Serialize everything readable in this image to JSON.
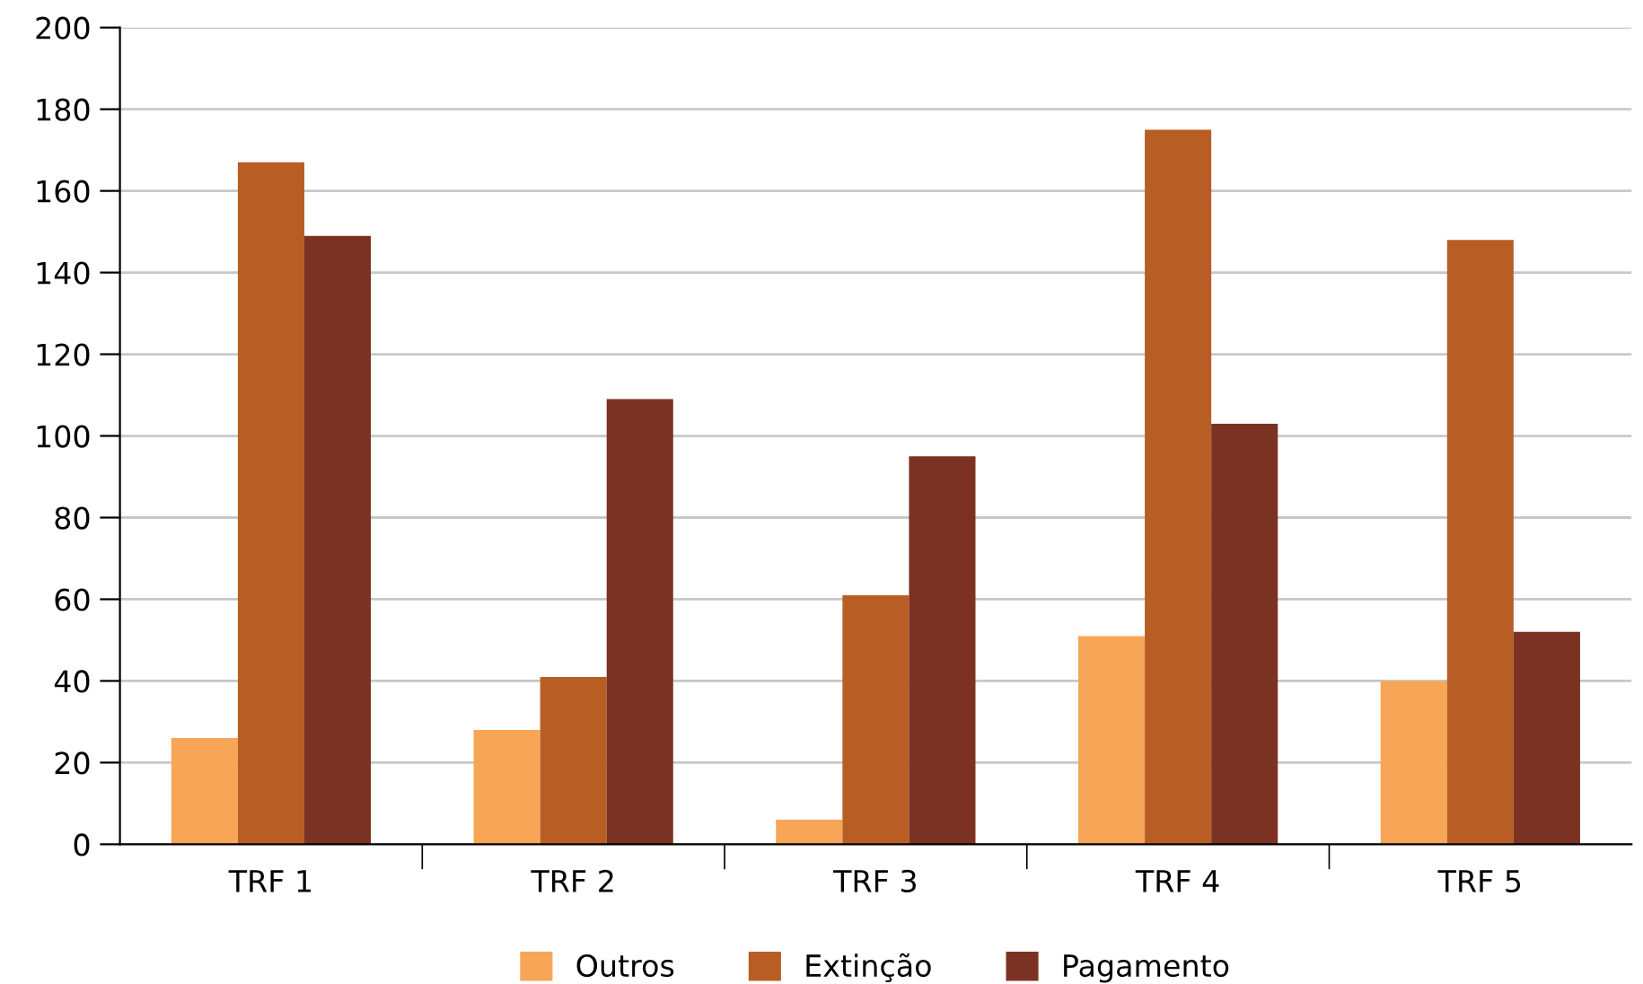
{
  "chart_data": {
    "type": "bar",
    "categories": [
      "TRF 1",
      "TRF 2",
      "TRF 3",
      "TRF 4",
      "TRF 5"
    ],
    "series": [
      {
        "name": "Outros",
        "color": "#f6a656",
        "values": [
          26,
          28,
          6,
          51,
          40
        ]
      },
      {
        "name": "Extinção",
        "color": "#b85e25",
        "values": [
          167,
          41,
          61,
          175,
          148
        ]
      },
      {
        "name": "Pagamento",
        "color": "#7c3223",
        "values": [
          149,
          109,
          95,
          103,
          52
        ]
      }
    ],
    "ylim": [
      0,
      200
    ],
    "yticks": [
      0,
      20,
      40,
      60,
      80,
      100,
      120,
      140,
      160,
      180,
      200
    ],
    "grid": "y",
    "legend": "bottom"
  }
}
